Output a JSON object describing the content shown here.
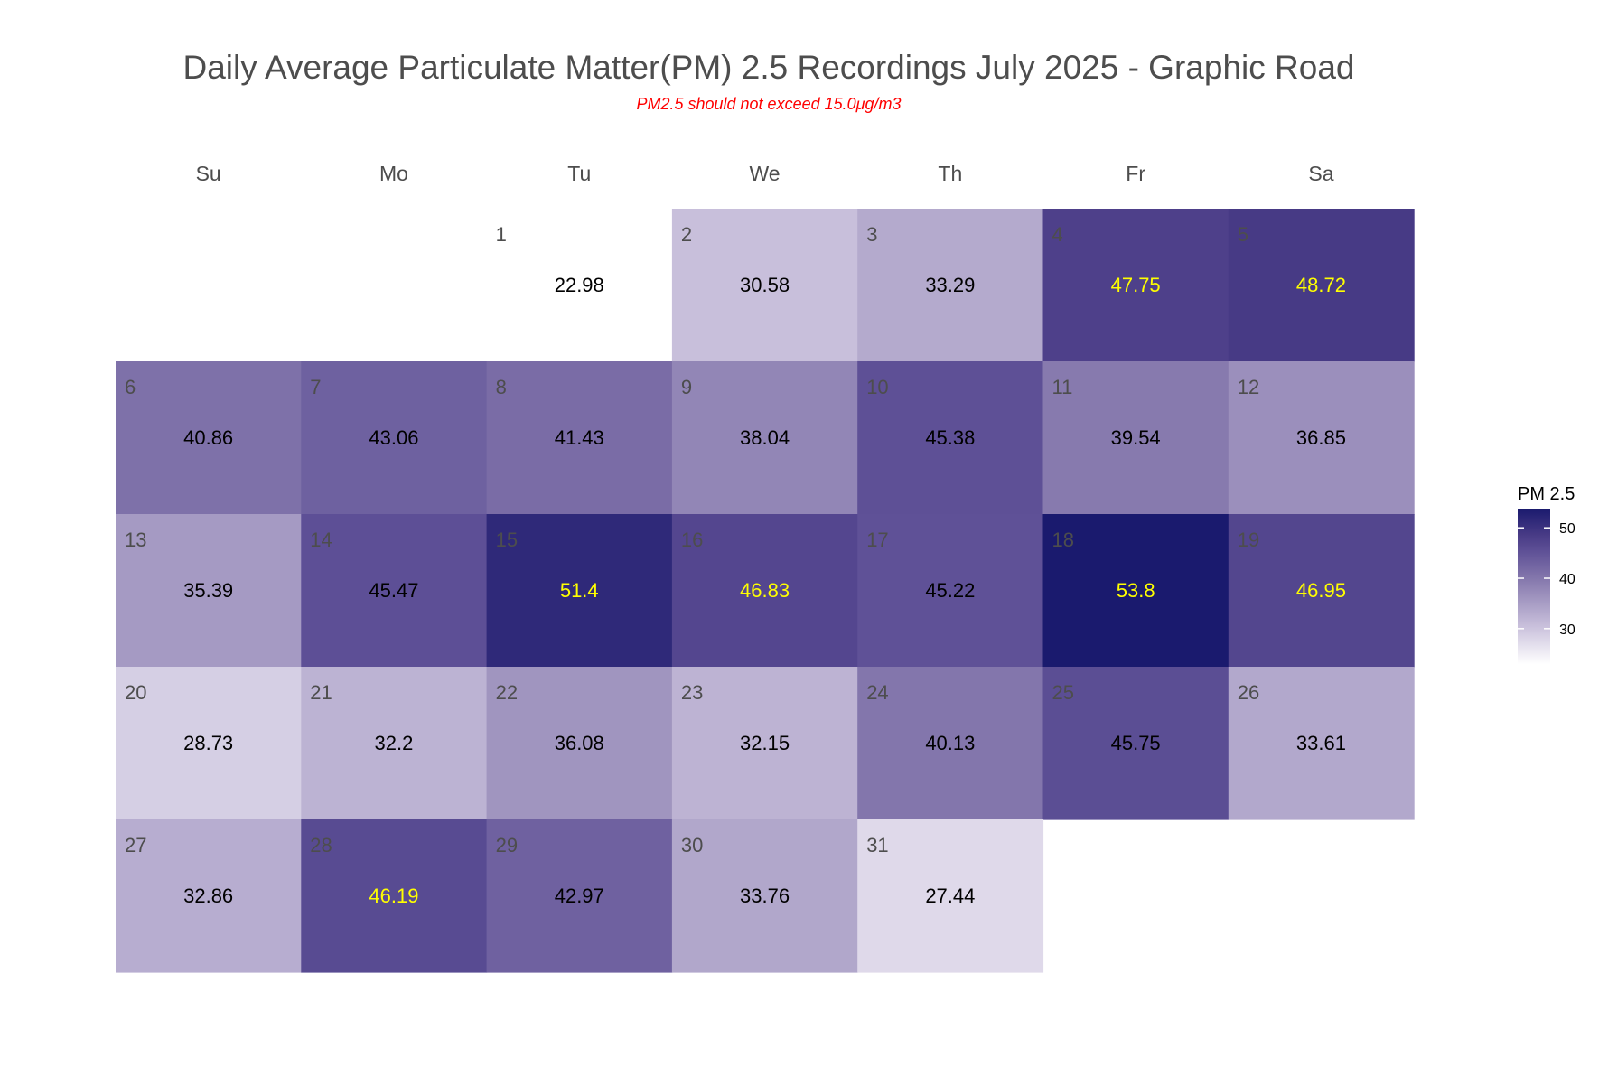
{
  "chart_data": {
    "type": "heatmap",
    "subtype": "calendar",
    "title": "Daily Average Particulate Matter(PM) 2.5 Recordings July 2025 -  Graphic Road",
    "subtitle": "PM2.5 should not exceed 15.0μg/m3",
    "weekdays": [
      "Su",
      "Mo",
      "Tu",
      "We",
      "Th",
      "Fr",
      "Sa"
    ],
    "first_weekday_index": 2,
    "days": [
      {
        "day": 1,
        "value": 22.98,
        "label": "22.98"
      },
      {
        "day": 2,
        "value": 30.58,
        "label": "30.58"
      },
      {
        "day": 3,
        "value": 33.29,
        "label": "33.29"
      },
      {
        "day": 4,
        "value": 47.75,
        "label": "47.75"
      },
      {
        "day": 5,
        "value": 48.72,
        "label": "48.72"
      },
      {
        "day": 6,
        "value": 40.86,
        "label": "40.86"
      },
      {
        "day": 7,
        "value": 43.06,
        "label": "43.06"
      },
      {
        "day": 8,
        "value": 41.43,
        "label": "41.43"
      },
      {
        "day": 9,
        "value": 38.04,
        "label": "38.04"
      },
      {
        "day": 10,
        "value": 45.38,
        "label": "45.38"
      },
      {
        "day": 11,
        "value": 39.54,
        "label": "39.54"
      },
      {
        "day": 12,
        "value": 36.85,
        "label": "36.85"
      },
      {
        "day": 13,
        "value": 35.39,
        "label": "35.39"
      },
      {
        "day": 14,
        "value": 45.47,
        "label": "45.47"
      },
      {
        "day": 15,
        "value": 51.4,
        "label": "51.4"
      },
      {
        "day": 16,
        "value": 46.83,
        "label": "46.83"
      },
      {
        "day": 17,
        "value": 45.22,
        "label": "45.22"
      },
      {
        "day": 18,
        "value": 53.8,
        "label": "53.8"
      },
      {
        "day": 19,
        "value": 46.95,
        "label": "46.95"
      },
      {
        "day": 20,
        "value": 28.73,
        "label": "28.73"
      },
      {
        "day": 21,
        "value": 32.2,
        "label": "32.2"
      },
      {
        "day": 22,
        "value": 36.08,
        "label": "36.08"
      },
      {
        "day": 23,
        "value": 32.15,
        "label": "32.15"
      },
      {
        "day": 24,
        "value": 40.13,
        "label": "40.13"
      },
      {
        "day": 25,
        "value": 45.75,
        "label": "45.75"
      },
      {
        "day": 26,
        "value": 33.61,
        "label": "33.61"
      },
      {
        "day": 27,
        "value": 32.86,
        "label": "32.86"
      },
      {
        "day": 28,
        "value": 46.19,
        "label": "46.19"
      },
      {
        "day": 29,
        "value": 42.97,
        "label": "42.97"
      },
      {
        "day": 30,
        "value": 33.76,
        "label": "33.76"
      },
      {
        "day": 31,
        "value": 27.44,
        "label": "27.44"
      }
    ],
    "color_scale": {
      "min": 22.98,
      "max": 53.8,
      "stops": [
        {
          "value": 22.98,
          "color": "#ffffff"
        },
        {
          "value": 30.58,
          "color": "#c8bfdb"
        },
        {
          "value": 39.54,
          "color": "#877aae"
        },
        {
          "value": 45.38,
          "color": "#5e5096"
        },
        {
          "value": 48.72,
          "color": "#473a85"
        },
        {
          "value": 53.8,
          "color": "#1a1a6e"
        }
      ]
    },
    "label_colors": {
      "dark_text": "#000000",
      "highlight_text": "#ffff00",
      "highlight_threshold": 46
    },
    "legend": {
      "title": "PM 2.5",
      "position": "right",
      "ticks": [
        {
          "value": 50,
          "label": "50"
        },
        {
          "value": 40,
          "label": "40"
        },
        {
          "value": 30,
          "label": "30"
        }
      ]
    }
  }
}
